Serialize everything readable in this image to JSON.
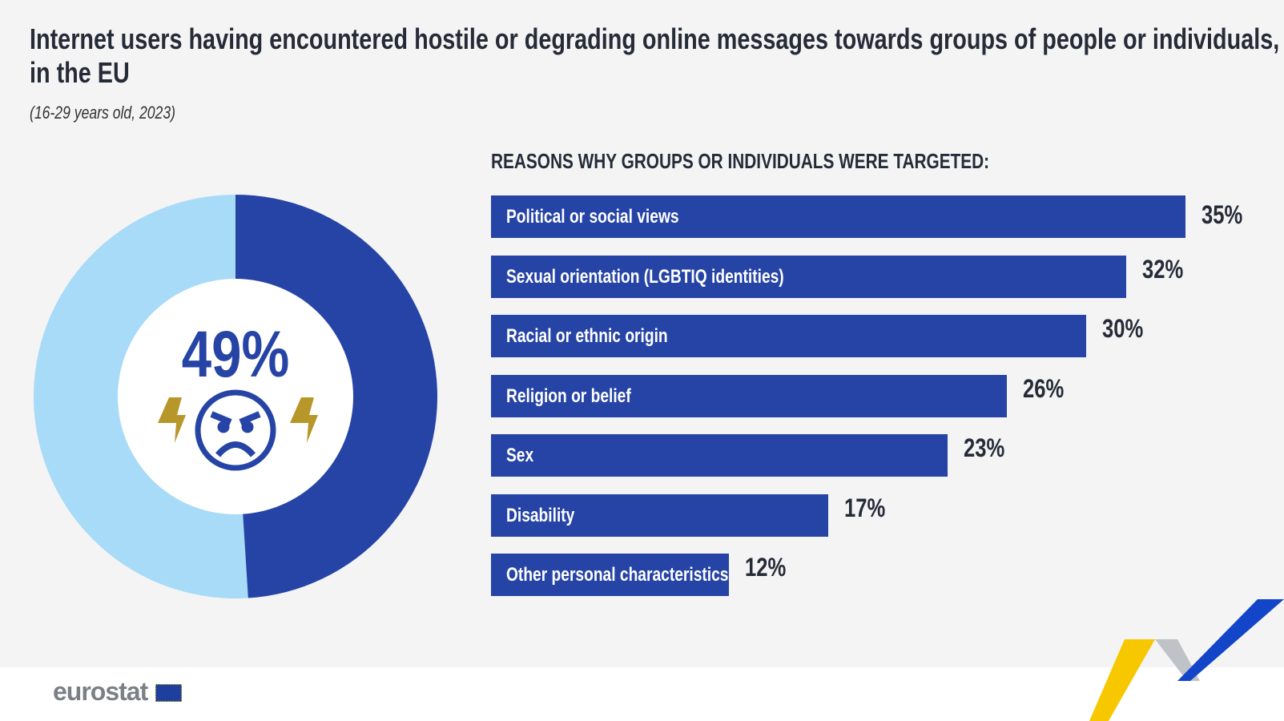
{
  "title": "Internet users having encountered hostile or degrading online messages towards groups of people or individuals,",
  "title_line2": "in the EU",
  "subtitle": "(16-29 years old, 2023)",
  "donut": {
    "value": 49,
    "label": "49%",
    "colors": {
      "value": "#2644a6",
      "rest": "#a8dbf7",
      "accent": "#b8972a"
    },
    "icon": "angry-face-icon"
  },
  "chart_data": {
    "type": "bar",
    "orientation": "horizontal",
    "title": "REASONS WHY GROUPS OR INDIVIDUALS WERE TARGETED:",
    "categories": [
      "Political or social views",
      "Sexual orientation (LGBTIQ identities)",
      "Racial or ethnic origin",
      "Religion or belief",
      "Sex",
      "Disability",
      "Other personal characteristics"
    ],
    "values": [
      35,
      32,
      30,
      26,
      23,
      17,
      12
    ],
    "labels": [
      "35%",
      "32%",
      "30%",
      "26%",
      "23%",
      "17%",
      "12%"
    ],
    "unit": "%",
    "color": "#2644a6"
  },
  "logo": "eurostat"
}
